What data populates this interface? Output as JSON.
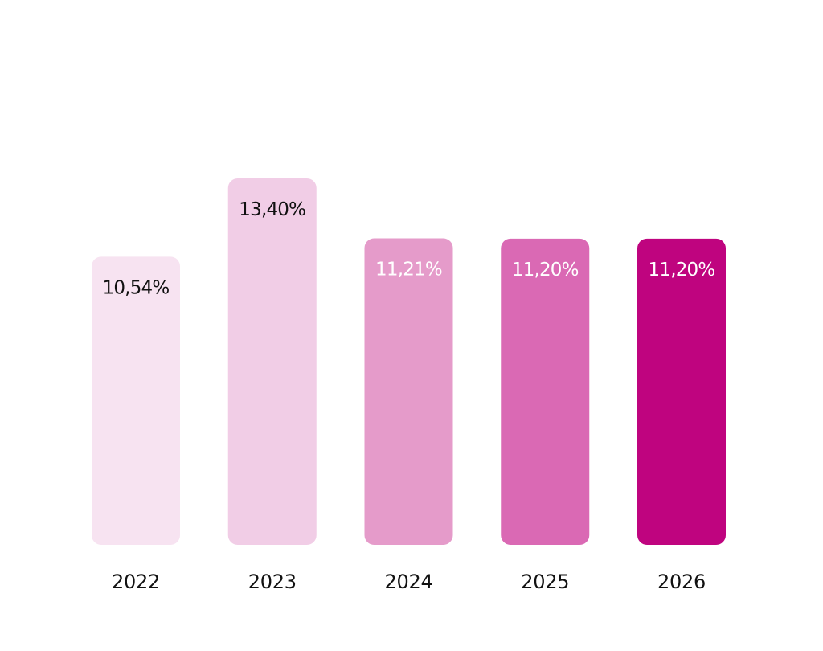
{
  "chart_data": {
    "type": "bar",
    "categories": [
      "2022",
      "2023",
      "2024",
      "2025",
      "2026"
    ],
    "values": [
      10.54,
      13.4,
      11.21,
      11.2,
      11.2
    ],
    "value_labels": [
      "10,54%",
      "13,40%",
      "11,21%",
      "11,20%",
      "11,20%"
    ],
    "title": "",
    "xlabel": "",
    "ylabel": "",
    "ylim": [
      0,
      13.4
    ],
    "grid": false,
    "legend": "none",
    "bar_colors": [
      "#f7e3f1",
      "#f1cde6",
      "#e59bca",
      "#da69b4",
      "#bf047f"
    ],
    "label_colors": [
      "#111111",
      "#111111",
      "#ffffff",
      "#ffffff",
      "#ffffff"
    ]
  }
}
